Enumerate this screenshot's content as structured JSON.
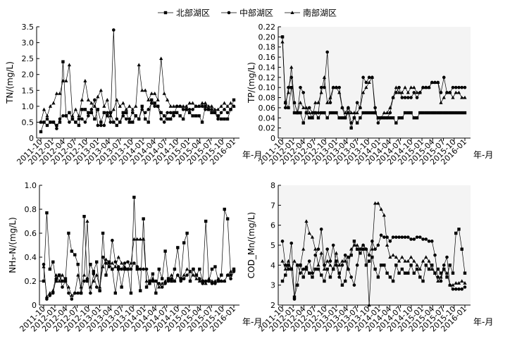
{
  "legend": [
    {
      "name": "北部湖区",
      "marker": "square"
    },
    {
      "name": "中部湖区",
      "marker": "circle"
    },
    {
      "name": "南部湖区",
      "marker": "triangle"
    }
  ],
  "x_axis_title": "年-月",
  "chart_data": [
    {
      "type": "line",
      "ylabel": "TN/(mg/L)",
      "ylim": [
        0,
        3.5
      ],
      "yticks": [
        "0",
        "0.5",
        "1.0",
        "1.5",
        "2.0",
        "2.5",
        "3.0",
        "3.5"
      ],
      "xtick_labels": [
        "2011-10",
        "2012-01",
        "2012-04",
        "2012-07",
        "2012-10",
        "2013-01",
        "2013-04",
        "2013-07",
        "2013-10",
        "2014-01",
        "2014-04",
        "2014-07",
        "2014-10",
        "2015-01",
        "2015-04",
        "2015-07",
        "2015-10",
        "2016-01"
      ],
      "grid": false,
      "series": [
        {
          "name": "北部湖区",
          "marker": "square",
          "values": [
            0.2,
            0.5,
            0.4,
            0.5,
            0.5,
            0.4,
            0.5,
            2.4,
            0.7,
            0.8,
            0.6,
            0.5,
            0.4,
            0.9,
            0.9,
            0.8,
            0.8,
            0.6,
            0.9,
            0.5,
            0.8,
            0.7,
            0.8,
            0.5,
            0.4,
            0.5,
            0.8,
            0.8,
            0.5,
            0.5,
            0.7,
            0.6,
            1.0,
            0.6,
            0.5,
            1.2,
            1.1,
            1.0,
            0.8,
            0.7,
            0.6,
            0.6,
            0.8,
            0.8,
            0.7,
            0.6,
            0.9,
            0.8,
            0.7,
            0.7,
            0.7,
            0.5,
            1.0,
            0.9,
            0.8,
            0.8,
            0.7,
            0.6,
            0.6,
            0.6,
            0.9,
            1.2
          ]
        },
        {
          "name": "中部湖区",
          "marker": "circle",
          "values": [
            0.5,
            0.5,
            0.6,
            0.5,
            0.5,
            0.3,
            0.6,
            0.7,
            0.7,
            0.5,
            0.6,
            0.5,
            0.6,
            0.6,
            0.5,
            0.7,
            0.9,
            1.2,
            0.4,
            0.4,
            0.4,
            0.8,
            0.5,
            3.4,
            0.6,
            0.5,
            0.7,
            0.6,
            0.6,
            0.8,
            0.7,
            0.6,
            0.9,
            0.8,
            0.9,
            1.1,
            1.0,
            1.0,
            0.6,
            0.5,
            0.8,
            0.8,
            0.7,
            1.0,
            1.0,
            0.9,
            0.9,
            0.9,
            0.9,
            1.0,
            1.0,
            1.0,
            0.9,
            0.9,
            0.9,
            0.8,
            0.6,
            0.8,
            0.9,
            0.8,
            0.9,
            1.0
          ]
        },
        {
          "name": "南部湖区",
          "marker": "triangle",
          "values": [
            0.5,
            0.9,
            0.7,
            1.0,
            1.1,
            1.4,
            1.4,
            1.8,
            1.8,
            2.3,
            0.7,
            0.9,
            0.7,
            1.2,
            1.8,
            1.2,
            1.1,
            1.0,
            1.3,
            1.5,
            1.0,
            1.2,
            0.7,
            0.9,
            1.2,
            1.0,
            1.1,
            0.9,
            1.0,
            0.9,
            1.0,
            2.3,
            1.5,
            1.5,
            1.2,
            1.4,
            1.4,
            1.2,
            2.5,
            1.4,
            1.2,
            1.0,
            1.0,
            1.0,
            1.0,
            1.0,
            1.0,
            1.1,
            1.1,
            1.0,
            1.0,
            1.1,
            1.1,
            1.0,
            1.0,
            0.9,
            0.9,
            1.0,
            1.1,
            1.0,
            1.1,
            1.0
          ]
        }
      ]
    },
    {
      "type": "line",
      "ylabel": "TP/(mg/L)",
      "ylim": [
        0,
        0.22
      ],
      "yticks": [
        "0",
        "0.02",
        "0.04",
        "0.06",
        "0.08",
        "0.10",
        "0.12",
        "0.14",
        "0.16",
        "0.18",
        "0.20",
        "0.22"
      ],
      "xtick_labels": [
        "2011-10",
        "2012-01",
        "2012-04",
        "2012-07",
        "2012-10",
        "2013-01",
        "2013-04",
        "2013-07",
        "2013-10",
        "2014-01",
        "2014-04",
        "2014-07",
        "2014-10",
        "2015-01",
        "2015-04",
        "2015-07",
        "2015-10",
        "2016-01"
      ],
      "grid": false,
      "series": [
        {
          "name": "北部湖区",
          "marker": "square",
          "values": [
            0.2,
            0.07,
            0.06,
            0.1,
            0.05,
            0.05,
            0.05,
            0.03,
            0.05,
            0.04,
            0.04,
            0.05,
            0.04,
            0.05,
            0.05,
            0.04,
            0.05,
            0.05,
            0.05,
            0.04,
            0.04,
            0.04,
            0.05,
            0.02,
            0.04,
            0.03,
            0.04,
            0.05,
            0.05,
            0.05,
            0.05,
            0.05,
            0.04,
            0.04,
            0.04,
            0.04,
            0.04,
            0.04,
            0.03,
            0.04,
            0.04,
            0.05,
            0.05,
            0.05,
            0.04,
            0.04,
            0.05,
            0.05,
            0.05,
            0.05,
            0.05,
            0.05,
            0.05,
            0.05,
            0.05,
            0.05,
            0.05,
            0.05,
            0.05,
            0.05,
            0.05,
            0.05
          ]
        },
        {
          "name": "中部湖区",
          "marker": "circle",
          "values": [
            0.2,
            0.06,
            0.1,
            0.12,
            0.07,
            0.05,
            0.1,
            0.09,
            0.05,
            0.06,
            0.05,
            0.05,
            0.05,
            0.1,
            0.1,
            0.17,
            0.07,
            0.1,
            0.1,
            0.1,
            0.06,
            0.04,
            0.06,
            0.03,
            0.04,
            0.07,
            0.06,
            0.12,
            0.11,
            0.12,
            0.12,
            0.06,
            0.03,
            0.04,
            0.04,
            0.04,
            0.05,
            0.08,
            0.09,
            0.1,
            0.08,
            0.08,
            0.08,
            0.08,
            0.09,
            0.08,
            0.09,
            0.1,
            0.1,
            0.1,
            0.11,
            0.11,
            0.11,
            0.09,
            0.12,
            0.09,
            0.09,
            0.1,
            0.1,
            0.1,
            0.1,
            0.1
          ]
        },
        {
          "name": "南部湖区",
          "marker": "triangle",
          "values": [
            0.19,
            0.07,
            0.09,
            0.14,
            0.07,
            0.05,
            0.07,
            0.06,
            0.06,
            0.05,
            0.04,
            0.07,
            0.07,
            0.09,
            0.12,
            0.07,
            0.08,
            0.1,
            0.1,
            0.09,
            0.06,
            0.05,
            0.06,
            0.05,
            0.05,
            0.05,
            0.06,
            0.09,
            0.1,
            0.11,
            0.12,
            0.05,
            0.04,
            0.04,
            0.05,
            0.05,
            0.06,
            0.08,
            0.1,
            0.09,
            0.09,
            0.1,
            0.09,
            0.1,
            0.1,
            0.09,
            0.09,
            0.1,
            0.1,
            0.1,
            0.11,
            0.11,
            0.11,
            0.07,
            0.08,
            0.09,
            0.09,
            0.08,
            0.09,
            0.09,
            0.08,
            0.08
          ]
        }
      ]
    },
    {
      "type": "line",
      "ylabel": "NH₃-N/(mg/L)",
      "ylim": [
        0,
        1.0
      ],
      "yticks": [
        "0",
        "0.2",
        "0.4",
        "0.6",
        "0.8",
        "1.0"
      ],
      "xtick_labels": [
        "2011-10",
        "2012-01",
        "2012-04",
        "2012-07",
        "2012-10",
        "2013-01",
        "2013-04",
        "2013-07",
        "2013-10",
        "2014-01",
        "2014-04",
        "2014-07",
        "2014-10",
        "2015-01",
        "2015-04",
        "2015-07",
        "2015-10",
        "2016-01"
      ],
      "grid": false,
      "series": [
        {
          "name": "北部湖区",
          "marker": "square",
          "values": [
            0.2,
            0.77,
            0.3,
            0.36,
            0.2,
            0.25,
            0.2,
            0.22,
            0.6,
            0.45,
            0.42,
            0.34,
            0.1,
            0.74,
            0.2,
            0.34,
            0.28,
            0.36,
            0.12,
            0.6,
            0.25,
            0.36,
            0.3,
            0.1,
            0.3,
            0.15,
            0.3,
            0.3,
            0.1,
            0.9,
            0.3,
            0.12,
            0.72,
            0.15,
            0.2,
            0.26,
            0.1,
            0.3,
            0.22,
            0.45,
            0.22,
            0.2,
            0.3,
            0.48,
            0.22,
            0.52,
            0.6,
            0.2,
            0.3,
            0.25,
            0.3,
            0.2,
            0.7,
            0.2,
            0.3,
            0.32,
            0.2,
            0.25,
            0.8,
            0.72,
            0.25,
            0.3
          ]
        },
        {
          "name": "中部湖区",
          "marker": "circle",
          "values": [
            0.34,
            0.05,
            0.08,
            0.1,
            0.22,
            0.25,
            0.15,
            0.2,
            0.1,
            0.05,
            0.1,
            0.1,
            0.1,
            0.2,
            0.22,
            0.1,
            0.26,
            0.15,
            0.12,
            0.4,
            0.35,
            0.32,
            0.54,
            0.36,
            0.32,
            0.3,
            0.35,
            0.36,
            0.3,
            0.35,
            0.32,
            0.3,
            0.3,
            0.3,
            0.18,
            0.2,
            0.2,
            0.18,
            0.15,
            0.18,
            0.2,
            0.22,
            0.2,
            0.25,
            0.2,
            0.22,
            0.25,
            0.28,
            0.3,
            0.25,
            0.22,
            0.18,
            0.2,
            0.2,
            0.18,
            0.18,
            0.2,
            0.2,
            0.2,
            0.25,
            0.22,
            0.28
          ]
        },
        {
          "name": "南部湖区",
          "marker": "triangle",
          "values": [
            0.32,
            0.07,
            0.1,
            0.12,
            0.25,
            0.2,
            0.25,
            0.2,
            0.15,
            0.08,
            0.1,
            0.25,
            0.15,
            0.25,
            0.7,
            0.15,
            0.2,
            0.25,
            0.15,
            0.32,
            0.38,
            0.35,
            0.35,
            0.32,
            0.4,
            0.35,
            0.32,
            0.3,
            0.35,
            0.55,
            0.55,
            0.55,
            0.55,
            0.2,
            0.18,
            0.22,
            0.2,
            0.15,
            0.18,
            0.2,
            0.22,
            0.25,
            0.2,
            0.25,
            0.22,
            0.25,
            0.3,
            0.28,
            0.25,
            0.22,
            0.2,
            0.2,
            0.18,
            0.22,
            0.2,
            0.2,
            0.22,
            0.2,
            0.2,
            0.25,
            0.28,
            0.3
          ]
        }
      ]
    },
    {
      "type": "line",
      "ylabel": "COD_Mn/(mg/L)",
      "ylim": [
        2,
        8
      ],
      "yticks": [
        "2",
        "3",
        "4",
        "5",
        "6",
        "7",
        "8"
      ],
      "xtick_labels": [
        "2011-10",
        "2012-01",
        "2012-04",
        "2012-07",
        "2012-10",
        "2013-01",
        "2013-04",
        "2013-07",
        "2013-10",
        "2014-01",
        "2014-04",
        "2014-07",
        "2014-10",
        "2015-01",
        "2015-04",
        "2015-07",
        "2015-10",
        "2016-01"
      ],
      "grid": false,
      "series": [
        {
          "name": "北部湖区",
          "marker": "square",
          "values": [
            3.2,
            3.5,
            4.0,
            3.8,
            2.4,
            3.0,
            4.0,
            3.4,
            3.8,
            3.6,
            3.4,
            3.8,
            3.8,
            3.5,
            3.2,
            3.8,
            3.4,
            3.8,
            4.2,
            3.6,
            3.0,
            3.2,
            4.4,
            4.5,
            5.2,
            4.8,
            4.6,
            4.8,
            4.0,
            4.2,
            4.4,
            3.8,
            3.4,
            4.0,
            4.0,
            3.6,
            3.4,
            3.2,
            4.0,
            3.6,
            3.8,
            3.6,
            3.6,
            4.0,
            3.6,
            3.8,
            3.4,
            3.2,
            4.0,
            3.8,
            4.0,
            3.6,
            3.8,
            3.6,
            3.8,
            3.4,
            4.0,
            3.6,
            5.6,
            5.8,
            4.8,
            3.6
          ]
        },
        {
          "name": "中部湖区",
          "marker": "circle",
          "values": [
            5.2,
            4.0,
            3.8,
            5.1,
            2.3,
            4.0,
            3.6,
            3.8,
            3.9,
            4.2,
            3.6,
            4.5,
            4.8,
            5.8,
            4.0,
            4.8,
            4.2,
            5.0,
            4.0,
            3.4,
            4.0,
            4.5,
            3.8,
            3.4,
            3.0,
            4.0,
            4.8,
            5.0,
            4.8,
            4.5,
            5.2,
            4.8,
            5.0,
            5.5,
            5.4,
            5.4,
            5.2,
            5.4,
            5.4,
            5.4,
            5.4,
            5.4,
            5.4,
            5.3,
            5.3,
            5.4,
            5.4,
            5.3,
            5.3,
            5.2,
            5.2,
            4.5,
            3.4,
            3.2,
            4.0,
            4.4,
            3.0,
            2.8,
            2.8,
            2.8,
            2.8,
            2.9
          ]
        },
        {
          "name": "南部湖区",
          "marker": "triangle",
          "values": [
            4.2,
            3.8,
            4.2,
            3.8,
            4.2,
            4.0,
            4.0,
            4.8,
            6.2,
            5.6,
            5.4,
            4.8,
            4.0,
            4.6,
            3.8,
            4.2,
            4.0,
            3.8,
            4.6,
            4.0,
            4.2,
            4.2,
            3.8,
            4.8,
            5.0,
            5.0,
            4.8,
            5.0,
            4.8,
            2.0,
            4.8,
            7.1,
            7.1,
            6.8,
            6.5,
            5.0,
            4.4,
            4.5,
            4.4,
            4.2,
            4.4,
            4.2,
            4.2,
            4.4,
            4.2,
            4.0,
            3.8,
            4.2,
            4.4,
            4.2,
            3.8,
            3.6,
            3.2,
            3.4,
            3.8,
            3.6,
            3.0,
            3.0,
            3.1,
            3.1,
            3.2,
            3.1
          ]
        }
      ]
    }
  ]
}
